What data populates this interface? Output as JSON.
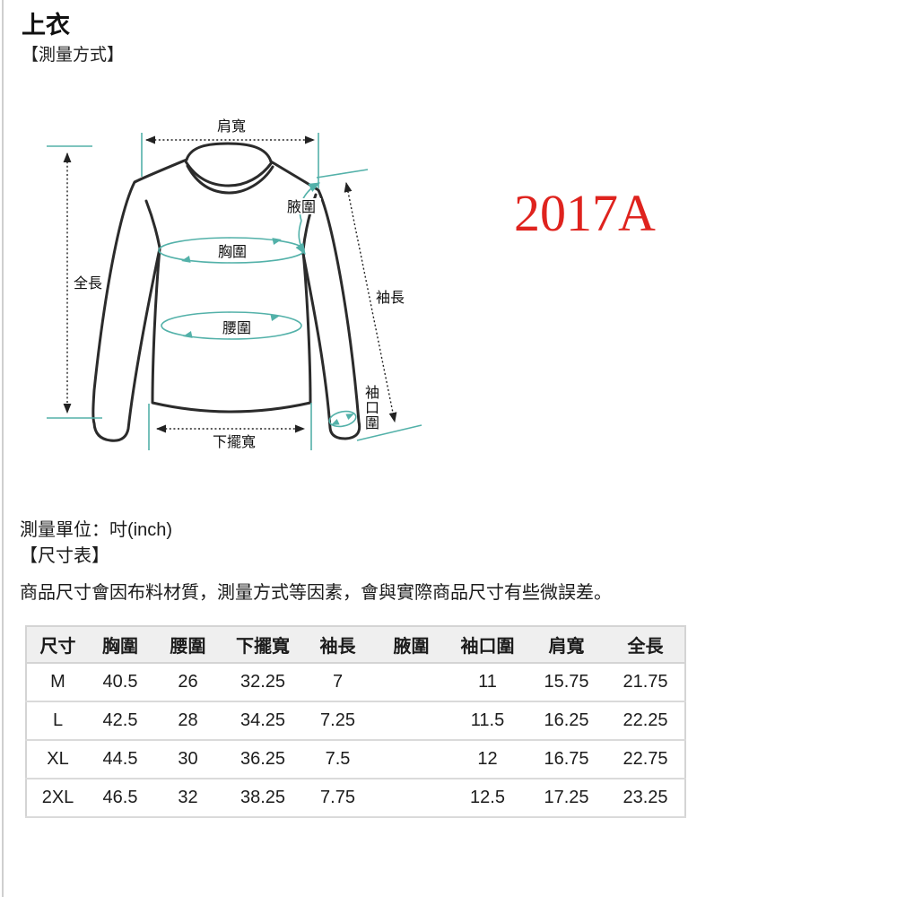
{
  "page": {
    "title": "上衣",
    "section_measure": "【測量方式】",
    "product_code": "2017A",
    "unit_line": "測量單位：吋(inch)",
    "section_size": "【尺寸表】",
    "disclaimer": "商品尺寸會因布料材質，測量方式等因素，會與實際商品尺寸有些微誤差。"
  },
  "diagram": {
    "labels": {
      "shoulder_width": "肩寬",
      "armpit_girth": "腋圍",
      "chest_girth": "胸圍",
      "total_length": "全長",
      "sleeve_length": "袖長",
      "waist_girth": "腰圍",
      "cuff_chars": [
        "袖",
        "口",
        "圍"
      ],
      "hem_width": "下擺寬"
    },
    "colors": {
      "measure_line_teal": "#53b1a9",
      "outline_black": "#2b2b2b",
      "product_code_red": "#df231e"
    }
  },
  "table": {
    "headers": [
      "尺寸",
      "胸圍",
      "腰圍",
      "下擺寬",
      "袖長",
      "腋圍",
      "袖口圍",
      "肩寬",
      "全長"
    ],
    "rows": [
      [
        "M",
        "40.5",
        "26",
        "32.25",
        "7",
        "",
        "11",
        "15.75",
        "21.75"
      ],
      [
        "L",
        "42.5",
        "28",
        "34.25",
        "7.25",
        "",
        "11.5",
        "16.25",
        "22.25"
      ],
      [
        "XL",
        "44.5",
        "30",
        "36.25",
        "7.5",
        "",
        "12",
        "16.75",
        "22.75"
      ],
      [
        "2XL",
        "46.5",
        "32",
        "38.25",
        "7.75",
        "",
        "12.5",
        "17.25",
        "23.25"
      ]
    ]
  }
}
